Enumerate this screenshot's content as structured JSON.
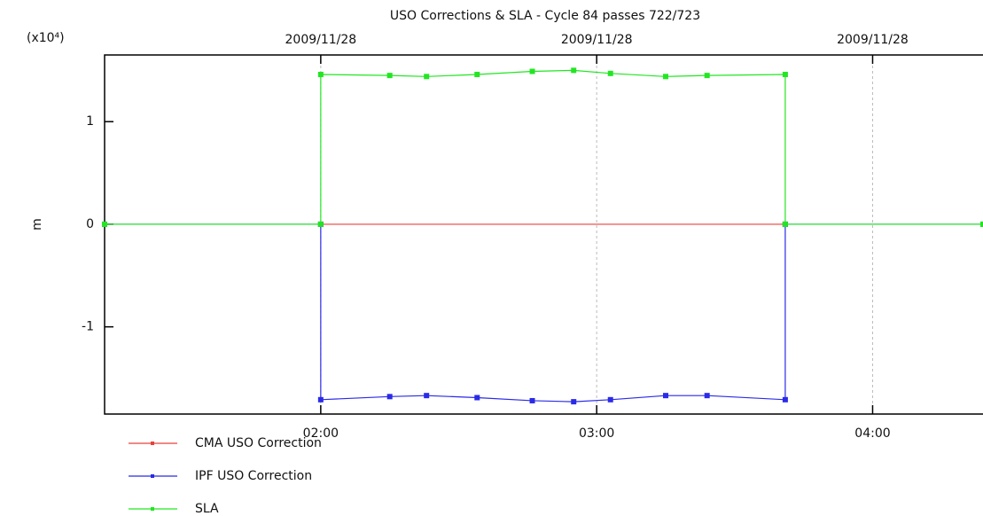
{
  "chart_data": {
    "type": "line",
    "title": "USO Corrections & SLA - Cycle 84 passes 722/723",
    "ylabel": "m",
    "y_multiplier": "(x10⁴)",
    "top_labels": [
      "2009/11/28",
      "2009/11/28",
      "2009/11/28"
    ],
    "xlim": [
      "01:13",
      "04:24"
    ],
    "xticks": [
      "02:00",
      "03:00",
      "04:00"
    ],
    "ylim": [
      -1.85,
      1.65
    ],
    "yticks": [
      1,
      0,
      -1
    ],
    "grid": true,
    "series": [
      {
        "name": "CMA USO Correction",
        "color": "#e8403a",
        "x": [
          "02:00",
          "03:41"
        ],
        "values": [
          0,
          0
        ]
      },
      {
        "name": "IPF USO Correction",
        "color": "#2a2ae8",
        "x": [
          "01:13",
          "02:00",
          "02:00",
          "02:15",
          "02:23",
          "02:34",
          "02:46",
          "02:55",
          "03:03",
          "03:15",
          "03:24",
          "03:41",
          "03:41",
          "04:24"
        ],
        "values": [
          0,
          0,
          -1.71,
          -1.68,
          -1.67,
          -1.69,
          -1.72,
          -1.73,
          -1.71,
          -1.67,
          -1.67,
          -1.71,
          0,
          0
        ]
      },
      {
        "name": "SLA",
        "color": "#22e622",
        "x": [
          "01:13",
          "02:00",
          "02:00",
          "02:15",
          "02:23",
          "02:34",
          "02:46",
          "02:55",
          "03:03",
          "03:15",
          "03:24",
          "03:41",
          "03:41",
          "04:24"
        ],
        "values": [
          0,
          0,
          1.46,
          1.45,
          1.44,
          1.46,
          1.49,
          1.5,
          1.47,
          1.44,
          1.45,
          1.46,
          0,
          0
        ]
      }
    ]
  }
}
